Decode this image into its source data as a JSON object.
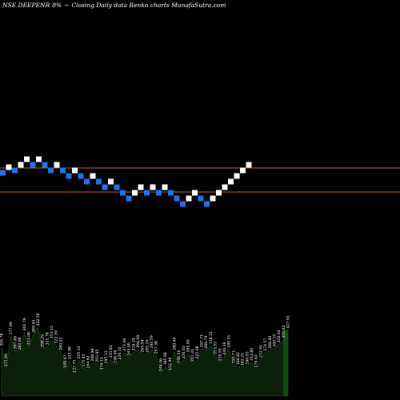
{
  "header": {
    "symbol": "NSE DEEPENR",
    "change": "8%",
    "suffix": "~",
    "chart_title": "Closing Daily data  Renko  charts MunafaSutra.com"
  },
  "colors": {
    "background": "#000000",
    "up_brick": "#ffffff",
    "down_brick": "#1f6fe6",
    "guide_line": "#c05a1a",
    "volume_fill": "#0b1f0b",
    "volume_stroke": "#1c5a1c",
    "volume_last_bar": "#0f4d0f"
  },
  "chart_data": [
    {
      "type": "renko",
      "ylabel": "",
      "xlabel": "",
      "guide_levels": [
        210,
        240
      ],
      "bricks": [
        {
          "close": 216,
          "dir": "down"
        },
        {
          "close": 209,
          "dir": "up"
        },
        {
          "close": 213,
          "dir": "down"
        },
        {
          "close": 206,
          "dir": "up"
        },
        {
          "close": 199,
          "dir": "up"
        },
        {
          "close": 206,
          "dir": "down"
        },
        {
          "close": 199,
          "dir": "up"
        },
        {
          "close": 206,
          "dir": "down"
        },
        {
          "close": 213,
          "dir": "down"
        },
        {
          "close": 206,
          "dir": "up"
        },
        {
          "close": 213,
          "dir": "down"
        },
        {
          "close": 220,
          "dir": "down"
        },
        {
          "close": 213,
          "dir": "up"
        },
        {
          "close": 220,
          "dir": "down"
        },
        {
          "close": 227,
          "dir": "down"
        },
        {
          "close": 220,
          "dir": "up"
        },
        {
          "close": 227,
          "dir": "down"
        },
        {
          "close": 234,
          "dir": "down"
        },
        {
          "close": 227,
          "dir": "up"
        },
        {
          "close": 234,
          "dir": "down"
        },
        {
          "close": 241,
          "dir": "down"
        },
        {
          "close": 248,
          "dir": "down"
        },
        {
          "close": 241,
          "dir": "up"
        },
        {
          "close": 234,
          "dir": "up"
        },
        {
          "close": 241,
          "dir": "down"
        },
        {
          "close": 234,
          "dir": "up"
        },
        {
          "close": 241,
          "dir": "down"
        },
        {
          "close": 234,
          "dir": "up"
        },
        {
          "close": 241,
          "dir": "down"
        },
        {
          "close": 248,
          "dir": "down"
        },
        {
          "close": 255,
          "dir": "down"
        },
        {
          "close": 248,
          "dir": "up"
        },
        {
          "close": 241,
          "dir": "up"
        },
        {
          "close": 248,
          "dir": "down"
        },
        {
          "close": 255,
          "dir": "down"
        },
        {
          "close": 248,
          "dir": "up"
        },
        {
          "close": 241,
          "dir": "up"
        },
        {
          "close": 234,
          "dir": "up"
        },
        {
          "close": 227,
          "dir": "up"
        },
        {
          "close": 220,
          "dir": "up"
        },
        {
          "close": 213,
          "dir": "up"
        },
        {
          "close": 206,
          "dir": "up"
        }
      ]
    },
    {
      "type": "bar",
      "title": "volume",
      "labels": [
        "304.78",
        "175.89",
        "377.99",
        "287.89",
        "280.88",
        "402.76",
        "313.08",
        "389.94",
        "432.56",
        "298.29",
        "311.78",
        "353.12",
        "322.39",
        "280.23",
        "168.97",
        "221.98",
        "137.75",
        "225.12",
        "175.45",
        "164.62",
        "208.98",
        "203.95",
        "156.11",
        "195.13",
        "231.82",
        "198.99",
        "220.32",
        "273.46",
        "245.90",
        "276.19",
        "294.09",
        "265.54",
        "265.10",
        "291.59",
        "257.38",
        "146.06",
        "185.68",
        "152.96",
        "280.40",
        "198.56",
        "226.03",
        "265.40",
        "207.41",
        "225.08",
        "297.71",
        "289.79",
        "318.21",
        "253.55",
        "210.95",
        "249.36",
        "295.51",
        "195.71",
        "186.82",
        "182.21",
        "190.03",
        "212.80",
        "170.62",
        "232.41",
        "274.57",
        "288.99",
        "300.35",
        "326.64",
        "355.42",
        "417.91"
      ],
      "values": [
        304.78,
        175.89,
        377.99,
        287.89,
        280.88,
        402.76,
        313.08,
        389.94,
        432.56,
        298.29,
        311.78,
        353.12,
        322.39,
        280.23,
        168.97,
        221.98,
        137.75,
        225.12,
        175.45,
        164.62,
        208.98,
        203.95,
        156.11,
        195.13,
        231.82,
        198.99,
        220.32,
        273.46,
        245.9,
        276.19,
        294.09,
        265.54,
        265.1,
        291.59,
        257.38,
        146.06,
        185.68,
        152.96,
        280.4,
        198.56,
        226.03,
        265.4,
        207.41,
        225.08,
        297.71,
        289.79,
        318.21,
        253.55,
        210.95,
        249.36,
        295.51,
        195.71,
        186.82,
        182.21,
        190.03,
        212.8,
        170.62,
        232.41,
        274.57,
        288.99,
        300.35,
        326.64,
        355.42,
        417.91
      ]
    }
  ]
}
